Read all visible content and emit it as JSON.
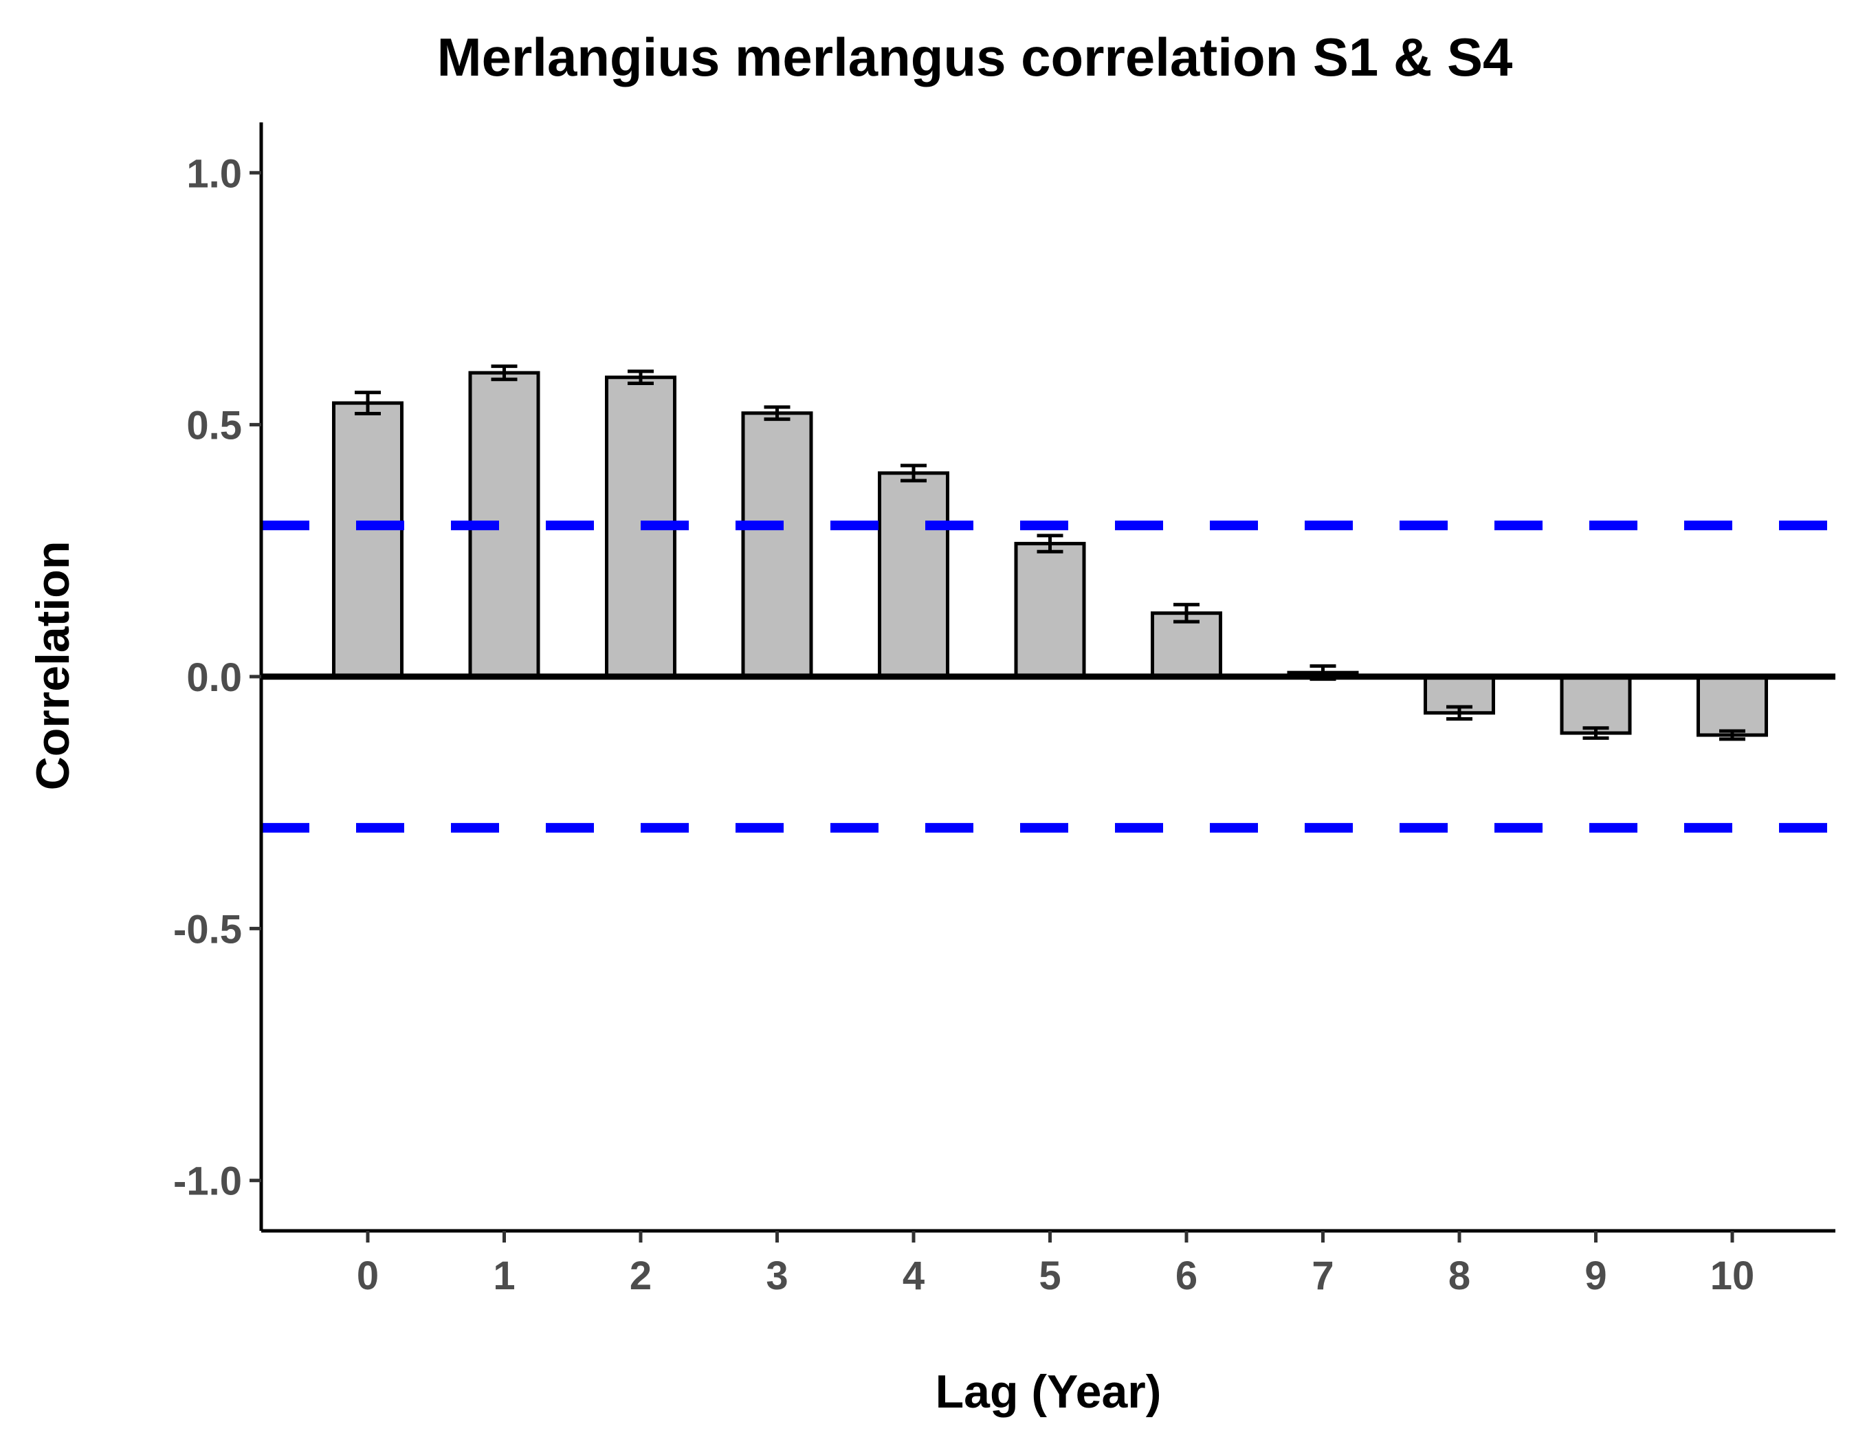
{
  "chart_data": {
    "type": "bar",
    "title": "Merlangius merlangus correlation S1 & S4",
    "xlabel": "Lag (Year)",
    "ylabel": "Correlation",
    "categories": [
      "0",
      "1",
      "2",
      "3",
      "4",
      "5",
      "6",
      "7",
      "8",
      "9",
      "10"
    ],
    "values": [
      0.543,
      0.603,
      0.594,
      0.523,
      0.404,
      0.264,
      0.126,
      0.008,
      -0.072,
      -0.112,
      -0.116
    ],
    "error_low": [
      0.522,
      0.59,
      0.582,
      0.511,
      0.389,
      0.248,
      0.109,
      -0.005,
      -0.084,
      -0.122,
      -0.124
    ],
    "error_high": [
      0.564,
      0.616,
      0.606,
      0.535,
      0.419,
      0.28,
      0.143,
      0.021,
      -0.06,
      -0.102,
      -0.108
    ],
    "ylim": [
      -1.1,
      1.1
    ],
    "yticks": [
      "-1.0",
      "-0.5",
      "0.0",
      "0.5",
      "1.0"
    ],
    "ytick_values": [
      -1.0,
      -0.5,
      0.0,
      0.5,
      1.0
    ],
    "reference_lines": [
      0.3,
      -0.3
    ],
    "grid": false,
    "legend": "none",
    "colors": {
      "bar_fill": "#bebebe",
      "bar_stroke": "#000000",
      "reference_line": "#0000ff",
      "zero_line": "#000000"
    }
  }
}
